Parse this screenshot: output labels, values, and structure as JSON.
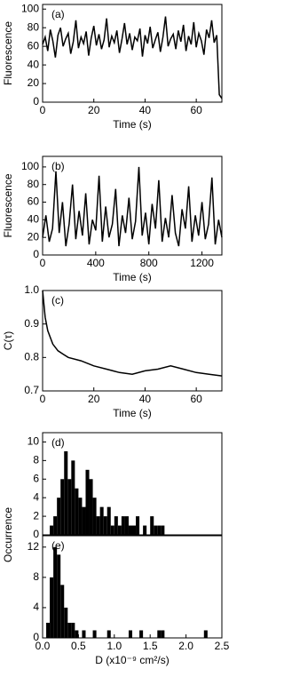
{
  "chart_data": [
    {
      "type": "line",
      "panel_label": "(a)",
      "xlabel": "Time (s)",
      "ylabel": "Fluorescence",
      "color": "#000000",
      "xlim": [
        0,
        70
      ],
      "xticks": [
        0,
        20,
        40,
        60
      ],
      "ylim": [
        0,
        105
      ],
      "yticks": [
        0,
        20,
        40,
        60,
        80,
        100
      ],
      "x": [
        0,
        1,
        2,
        3,
        4,
        5,
        6,
        7,
        8,
        9,
        10,
        11,
        12,
        13,
        14,
        15,
        16,
        17,
        18,
        19,
        20,
        21,
        22,
        23,
        24,
        25,
        26,
        27,
        28,
        29,
        30,
        31,
        32,
        33,
        34,
        35,
        36,
        37,
        38,
        39,
        40,
        41,
        42,
        43,
        44,
        45,
        46,
        47,
        48,
        49,
        50,
        51,
        52,
        53,
        54,
        55,
        56,
        57,
        58,
        59,
        60,
        61,
        62,
        63,
        64,
        65,
        66,
        67,
        68,
        69,
        70
      ],
      "values": [
        62,
        70,
        55,
        78,
        66,
        48,
        72,
        80,
        60,
        68,
        74,
        52,
        65,
        88,
        58,
        70,
        63,
        76,
        50,
        69,
        82,
        61,
        73,
        57,
        67,
        90,
        59,
        71,
        64,
        77,
        53,
        68,
        85,
        62,
        74,
        56,
        70,
        66,
        79,
        49,
        72,
        63,
        81,
        58,
        67,
        75,
        54,
        70,
        92,
        60,
        68,
        73,
        57,
        77,
        65,
        83,
        55,
        71,
        62,
        86,
        59,
        74,
        66,
        51,
        78,
        69,
        88,
        64,
        72,
        8,
        4
      ]
    },
    {
      "type": "line",
      "panel_label": "(b)",
      "xlabel": "Time (s)",
      "ylabel": "Fluorescence",
      "color": "#000000",
      "xlim": [
        0,
        1350
      ],
      "xticks": [
        0,
        400,
        800,
        1200
      ],
      "ylim": [
        0,
        112
      ],
      "yticks": [
        0,
        20,
        40,
        60,
        80,
        100
      ],
      "x": [
        0,
        25,
        50,
        75,
        100,
        125,
        150,
        175,
        200,
        225,
        250,
        275,
        300,
        325,
        350,
        375,
        400,
        425,
        450,
        475,
        500,
        525,
        550,
        575,
        600,
        625,
        650,
        675,
        700,
        725,
        750,
        775,
        800,
        825,
        850,
        875,
        900,
        925,
        950,
        975,
        1000,
        1025,
        1050,
        1075,
        1100,
        1125,
        1150,
        1175,
        1200,
        1225,
        1250,
        1275,
        1300,
        1325,
        1350
      ],
      "values": [
        20,
        45,
        15,
        30,
        95,
        25,
        60,
        10,
        35,
        80,
        18,
        50,
        22,
        70,
        12,
        40,
        28,
        90,
        15,
        55,
        20,
        35,
        75,
        10,
        45,
        25,
        65,
        18,
        38,
        100,
        22,
        48,
        12,
        58,
        30,
        85,
        15,
        42,
        20,
        68,
        25,
        10,
        52,
        30,
        78,
        15,
        45,
        22,
        60,
        18,
        35,
        88,
        12,
        40,
        20
      ]
    },
    {
      "type": "line",
      "panel_label": "(c)",
      "xlabel": "Time (s)",
      "ylabel": "C(τ)",
      "color": "#000000",
      "xlim": [
        0,
        70
      ],
      "xticks": [
        0,
        20,
        40,
        60
      ],
      "ylim": [
        0.7,
        1.0
      ],
      "yticks": [
        0.7,
        0.8,
        0.9,
        {
          "value": 1,
          "label": "1.0"
        }
      ],
      "x": [
        0,
        1,
        2,
        4,
        6,
        8,
        10,
        15,
        20,
        25,
        30,
        35,
        40,
        45,
        50,
        55,
        60,
        65,
        70
      ],
      "values": [
        1.0,
        0.92,
        0.88,
        0.84,
        0.82,
        0.81,
        0.8,
        0.79,
        0.775,
        0.765,
        0.755,
        0.75,
        0.76,
        0.765,
        0.775,
        0.765,
        0.755,
        0.75,
        0.745
      ]
    },
    {
      "type": "histogram",
      "panel_label": "(d)",
      "ylabel": "Occurrence",
      "color": "#000000",
      "xlim": [
        0,
        2.5
      ],
      "ylim": [
        0,
        11
      ],
      "yticks": [
        {
          "value": 0,
          "label": "0"
        },
        2,
        4,
        6,
        8,
        10
      ],
      "bins": [
        0,
        0.05,
        0.1,
        0.15,
        0.2,
        0.25,
        0.3,
        0.35,
        0.4,
        0.45,
        0.5,
        0.55,
        0.6,
        0.65,
        0.7,
        0.75,
        0.8,
        0.85,
        0.9,
        0.95,
        1,
        1.05,
        1.1,
        1.15,
        1.2,
        1.25,
        1.3,
        1.35,
        1.4,
        1.45,
        1.5,
        1.55,
        1.6,
        1.65,
        1.7,
        1.75,
        1.8,
        1.85,
        1.9,
        1.95,
        2,
        2.05,
        2.1,
        2.15,
        2.2,
        2.25,
        2.3,
        2.35,
        2.4,
        2.45,
        2.5
      ],
      "values": [
        0,
        0,
        1,
        2,
        4,
        6,
        9,
        6,
        8,
        5,
        4,
        3,
        7,
        6,
        4,
        2,
        3,
        2,
        3,
        1,
        2,
        1,
        2,
        2,
        1,
        1,
        2,
        0,
        1,
        0,
        2,
        1,
        1,
        1,
        0,
        0,
        0,
        0,
        0,
        0,
        0,
        0,
        0,
        0,
        0,
        0,
        0,
        0,
        0,
        0
      ]
    },
    {
      "type": "histogram",
      "panel_label": "(e)",
      "xlabel": "D (x10⁻⁹ cm²/s)",
      "color": "#000000",
      "xlim": [
        0,
        2.5
      ],
      "ylim": [
        0,
        13.5
      ],
      "yticks": [
        0,
        4,
        8,
        12
      ],
      "xticks": [
        {
          "value": 0,
          "label": "0.0"
        },
        0.5,
        {
          "value": 1,
          "label": "1.0"
        },
        1.5,
        {
          "value": 2,
          "label": "2.0"
        },
        2.5
      ],
      "bins": [
        0,
        0.05,
        0.1,
        0.15,
        0.2,
        0.25,
        0.3,
        0.35,
        0.4,
        0.45,
        0.5,
        0.55,
        0.6,
        0.65,
        0.7,
        0.75,
        0.8,
        0.85,
        0.9,
        0.95,
        1,
        1.05,
        1.1,
        1.15,
        1.2,
        1.25,
        1.3,
        1.35,
        1.4,
        1.45,
        1.5,
        1.55,
        1.6,
        1.65,
        1.7,
        1.75,
        1.8,
        1.85,
        1.9,
        1.95,
        2,
        2.05,
        2.1,
        2.15,
        2.2,
        2.25,
        2.3,
        2.35,
        2.4,
        2.45,
        2.5
      ],
      "values": [
        0,
        2,
        8,
        12,
        11,
        7,
        4,
        2,
        2,
        1,
        0,
        1,
        0,
        0,
        1,
        0,
        0,
        0,
        1,
        0,
        0,
        0,
        0,
        0,
        1,
        0,
        0,
        1,
        0,
        0,
        0,
        0,
        1,
        1,
        0,
        0,
        0,
        0,
        0,
        0,
        0,
        0,
        0,
        0,
        0,
        1,
        0,
        0,
        0,
        0
      ]
    }
  ]
}
